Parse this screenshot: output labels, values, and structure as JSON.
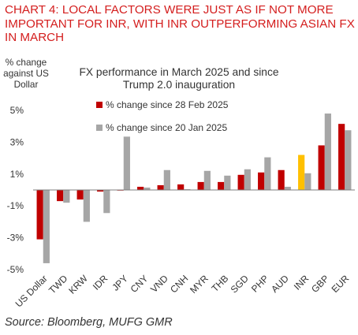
{
  "heading": "CHART 4: LOCAL FACTORS WERE JUST AS IF NOT MORE IMPORTANT FOR INR, WITH INR OUTPERFORMING ASIAN FX IN MARCH",
  "source": "Source: Bloomberg, MUFG GMR",
  "colors": {
    "heading": "#d41e1e",
    "series1": "#c00000",
    "series2": "#a6a6a6",
    "highlight": "#ffc000"
  },
  "chart_data": {
    "type": "bar",
    "title": "FX performance in March 2025 and since Trump 2.0 inauguration",
    "ylabel": "% change against US Dollar",
    "xlabel": "",
    "ylim": [
      -5,
      5
    ],
    "yticks": [
      "5%",
      "3%",
      "1%",
      "-1%",
      "-3%",
      "-5%"
    ],
    "ytick_values": [
      5,
      3,
      1,
      -1,
      -3,
      -5
    ],
    "legend_position": "top-left",
    "grid": false,
    "categories": [
      "US Dollar",
      "TWD",
      "KRW",
      "IDR",
      "JPY",
      "CNY",
      "VND",
      "CNH",
      "MYR",
      "THB",
      "SGD",
      "PHP",
      "AUD",
      "INR",
      "GBP",
      "EUR"
    ],
    "highlight_category": "INR",
    "series": [
      {
        "name": "% change since 28 Feb 2025",
        "values": [
          -3.1,
          -0.7,
          -0.6,
          -0.1,
          0.0,
          0.2,
          0.3,
          0.35,
          0.5,
          0.5,
          0.95,
          1.1,
          1.25,
          2.2,
          2.8,
          4.15
        ]
      },
      {
        "name": "% change since 20 Jan 2025",
        "values": [
          -4.6,
          -0.8,
          -2.0,
          -1.45,
          3.35,
          0.15,
          1.25,
          0.05,
          1.2,
          0.9,
          1.3,
          2.05,
          0.2,
          1.05,
          4.8,
          3.75
        ]
      }
    ]
  }
}
